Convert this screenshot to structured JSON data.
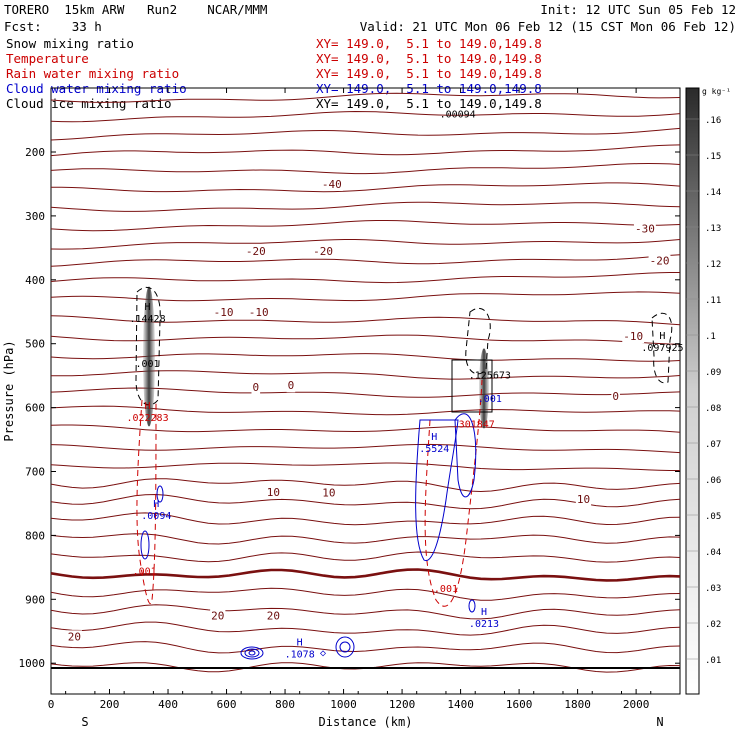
{
  "header": {
    "model": "TORERO  15km ARW   Run2    NCAR/MMM",
    "init": "Init: 12 UTC Sun 05 Feb 12",
    "fcst": "Fcst:    33 h",
    "valid": "Valid: 21 UTC Mon 06 Feb 12 (15 CST Mon 06 Feb 12)"
  },
  "legend": [
    {
      "label": "Snow mixing ratio",
      "xy": "XY= 149.0,  5.1 to 149.0,149.8",
      "color": "#000000"
    },
    {
      "label": "Temperature",
      "xy": "XY= 149.0,  5.1 to 149.0,149.8",
      "color": "#cc0000"
    },
    {
      "label": "Rain water mixing ratio",
      "xy": "XY= 149.0,  5.1 to 149.0,149.8",
      "color": "#cc0000"
    },
    {
      "label": "Cloud water mixing ratio",
      "xy": "XY= 149.0,  5.1 to 149.0,149.8",
      "color": "#0000cc"
    },
    {
      "label": "Cloud ice mixing ratio",
      "xy": "XY= 149.0,  5.1 to 149.0,149.8",
      "color": "#000000"
    }
  ],
  "chart_data": {
    "type": "contour",
    "xlabel": "Distance (km)",
    "ylabel": "Pressure (hPa)",
    "x_ticks": [
      0,
      200,
      400,
      600,
      800,
      1000,
      1200,
      1400,
      1600,
      1800,
      2000
    ],
    "y_ticks": [
      200,
      300,
      400,
      500,
      600,
      700,
      800,
      900,
      1000
    ],
    "xlim": [
      0,
      2150
    ],
    "ylim": [
      1050,
      125
    ],
    "end_labels": {
      "left": "S",
      "right": "N"
    },
    "colorbar": {
      "unit": "g kg⁻¹",
      "ticks": [
        ".01",
        ".02",
        ".03",
        ".04",
        ".05",
        ".06",
        ".07",
        ".08",
        ".09",
        ".1",
        ".11",
        ".12",
        ".13",
        ".14",
        ".15",
        ".16"
      ]
    },
    "temperature_contour_labels": [
      {
        "value": "-40",
        "x": 960,
        "p": 250
      },
      {
        "value": "-30",
        "x": 2030,
        "p": 320
      },
      {
        "value": "-20",
        "x": 700,
        "p": 355
      },
      {
        "value": "-20",
        "x": 930,
        "p": 355
      },
      {
        "value": "-20",
        "x": 2080,
        "p": 370
      },
      {
        "value": "-10",
        "x": 590,
        "p": 450
      },
      {
        "value": "-10",
        "x": 710,
        "p": 450
      },
      {
        "value": "-10",
        "x": 1990,
        "p": 488
      },
      {
        "value": "0",
        "x": 700,
        "p": 568
      },
      {
        "value": "0",
        "x": 820,
        "p": 565
      },
      {
        "value": "0",
        "x": 1930,
        "p": 582
      },
      {
        "value": "10",
        "x": 760,
        "p": 732
      },
      {
        "value": "10",
        "x": 950,
        "p": 733
      },
      {
        "value": "10",
        "x": 1820,
        "p": 743
      },
      {
        "value": "20",
        "x": 80,
        "p": 958
      },
      {
        "value": "20",
        "x": 570,
        "p": 925
      },
      {
        "value": "20",
        "x": 760,
        "p": 925
      }
    ],
    "extrema_labels": [
      {
        "mark": "H",
        "value": ".14428",
        "x": 330,
        "p": 460,
        "color": "#000000"
      },
      {
        "mark": "",
        "value": ".001",
        "x": 330,
        "p": 530,
        "color": "#000000"
      },
      {
        "mark": "H",
        "value": ".022283",
        "x": 330,
        "p": 615,
        "color": "#cc0000"
      },
      {
        "mark": "H",
        "value": ".0094",
        "x": 360,
        "p": 768,
        "color": "#0000cc"
      },
      {
        "mark": "",
        "value": ".001",
        "x": 320,
        "p": 855,
        "color": "#cc0000"
      },
      {
        "mark": "",
        "value": ".00094",
        "x": 1390,
        "p": 140,
        "color": "#000000"
      },
      {
        "mark": "",
        "value": ".125673",
        "x": 1500,
        "p": 548,
        "color": "#000000"
      },
      {
        "mark": "",
        "value": ".001",
        "x": 1500,
        "p": 585,
        "color": "#0000cc"
      },
      {
        "mark": "",
        "value": ".301847",
        "x": 1445,
        "p": 625,
        "color": "#cc0000"
      },
      {
        "mark": "H",
        "value": ".5524",
        "x": 1310,
        "p": 663,
        "color": "#0000cc"
      },
      {
        "mark": "",
        "value": ".001",
        "x": 1350,
        "p": 882,
        "color": "#cc0000"
      },
      {
        "mark": "H",
        "value": ".0213",
        "x": 1480,
        "p": 937,
        "color": "#0000cc"
      },
      {
        "mark": "H",
        "value": ".1078",
        "x": 850,
        "p": 985,
        "color": "#0000cc"
      },
      {
        "mark": "H",
        "value": ".097925",
        "x": 2090,
        "p": 505,
        "color": "#000000"
      }
    ]
  }
}
